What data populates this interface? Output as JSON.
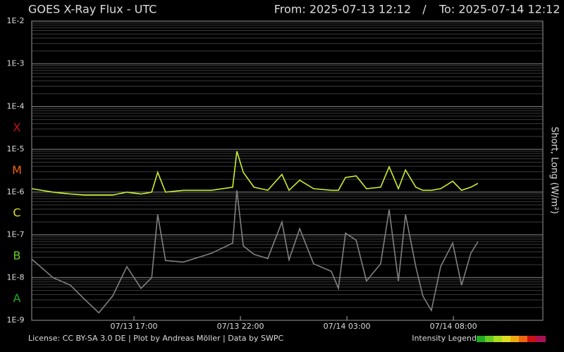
{
  "chart_data": {
    "type": "line",
    "title": "GOES X-Ray Flux - UTC",
    "range_from": "From: 2025-07-13 12:12",
    "range_separator": "/",
    "range_to": "To: 2025-07-14 12:12",
    "y_label": "Short, Long (W/m²)",
    "log_scale": true,
    "grid": true,
    "flare_classes": [
      {
        "label": "X",
        "color": "#cc1111"
      },
      {
        "label": "M",
        "color": "#ee6611"
      },
      {
        "label": "C",
        "color": "#dddd22"
      },
      {
        "label": "B",
        "color": "#66cc22"
      },
      {
        "label": "A",
        "color": "#22aa22"
      }
    ],
    "xlim": [
      "2025-07-13 12:12",
      "2025-07-14 12:12"
    ],
    "xticks": [
      {
        "value": "2025-07-13 17:00",
        "label": "07/13 17:00"
      },
      {
        "value": "2025-07-13 22:00",
        "label": "07/13 22:00"
      },
      {
        "value": "2025-07-14 03:00",
        "label": "07/14 03:00"
      },
      {
        "value": "2025-07-14 08:00",
        "label": "07/14 08:00"
      }
    ],
    "ylim": [
      1e-09,
      0.01
    ],
    "yticks": [
      {
        "value": 1e-09,
        "label": "1E-9"
      },
      {
        "value": 1e-08,
        "label": "1E-8"
      },
      {
        "value": 1e-07,
        "label": "1E-7"
      },
      {
        "value": 1e-06,
        "label": "1E-6"
      },
      {
        "value": 1e-05,
        "label": "1E-5"
      },
      {
        "value": 0.0001,
        "label": "1E-4"
      },
      {
        "value": 0.001,
        "label": "1E-3"
      },
      {
        "value": 0.01,
        "label": "1E-2"
      }
    ],
    "x": [
      "2025-07-13 12:12",
      "2025-07-13 13:12",
      "2025-07-13 14:01",
      "2025-07-13 14:41",
      "2025-07-13 15:21",
      "2025-07-13 16:00",
      "2025-07-13 16:40",
      "2025-07-13 17:20",
      "2025-07-13 17:50",
      "2025-07-13 18:07",
      "2025-07-13 18:29",
      "2025-07-13 19:19",
      "2025-07-13 20:38",
      "2025-07-13 21:38",
      "2025-07-13 21:50",
      "2025-07-13 22:08",
      "2025-07-13 22:38",
      "2025-07-13 23:17",
      "2025-07-13 23:57",
      "2025-07-14 00:17",
      "2025-07-14 00:47",
      "2025-07-14 01:26",
      "2025-07-14 02:16",
      "2025-07-14 02:36",
      "2025-07-14 02:56",
      "2025-07-14 03:26",
      "2025-07-14 03:55",
      "2025-07-14 04:35",
      "2025-07-14 04:59",
      "2025-07-14 05:25",
      "2025-07-14 05:45",
      "2025-07-14 06:14",
      "2025-07-14 06:34",
      "2025-07-14 06:58",
      "2025-07-14 07:24",
      "2025-07-14 07:58",
      "2025-07-14 08:23",
      "2025-07-14 08:49",
      "2025-07-14 09:09"
    ],
    "series": [
      {
        "color": "#c8f030",
        "values": [
          1.2e-06,
          1e-06,
          9e-07,
          8.5e-07,
          8.5e-07,
          8.5e-07,
          1e-06,
          9e-07,
          1e-06,
          2.9e-06,
          1e-06,
          1.1e-06,
          1.1e-06,
          1.3e-06,
          9e-06,
          2.9e-06,
          1.3e-06,
          1.1e-06,
          2.6e-06,
          1.1e-06,
          1.9e-06,
          1.2e-06,
          1.1e-06,
          1.1e-06,
          2.2e-06,
          2.4e-06,
          1.2e-06,
          1.3e-06,
          3.9e-06,
          1.2e-06,
          3.3e-06,
          1.3e-06,
          1.1e-06,
          1.1e-06,
          1.2e-06,
          1.8e-06,
          1.1e-06,
          1.3e-06,
          1.6e-06
        ]
      },
      {
        "color": "#808080",
        "values": [
          2.7e-08,
          1e-08,
          6.6e-09,
          3.1e-09,
          1.5e-09,
          3.7e-09,
          1.8e-08,
          5.6e-09,
          1e-08,
          3e-07,
          2.5e-08,
          2.3e-08,
          3.7e-08,
          6.4e-08,
          1.1e-06,
          5.5e-08,
          3.5e-08,
          2.8e-08,
          2e-07,
          2.6e-08,
          1.4e-07,
          2.1e-08,
          1.4e-08,
          5.6e-09,
          1.1e-07,
          7.5e-08,
          8.3e-09,
          2.1e-08,
          3.9e-07,
          8.3e-09,
          3e-07,
          1.8e-08,
          3.7e-09,
          1.7e-09,
          1.8e-08,
          6.4e-08,
          6.6e-09,
          3.7e-08,
          6.9e-08
        ]
      }
    ]
  },
  "footer": {
    "license": "License: CC BY-SA 3.0 DE | Plot by Andreas Möller | Data by SWPC",
    "legend_label": "Intensity Legend"
  }
}
